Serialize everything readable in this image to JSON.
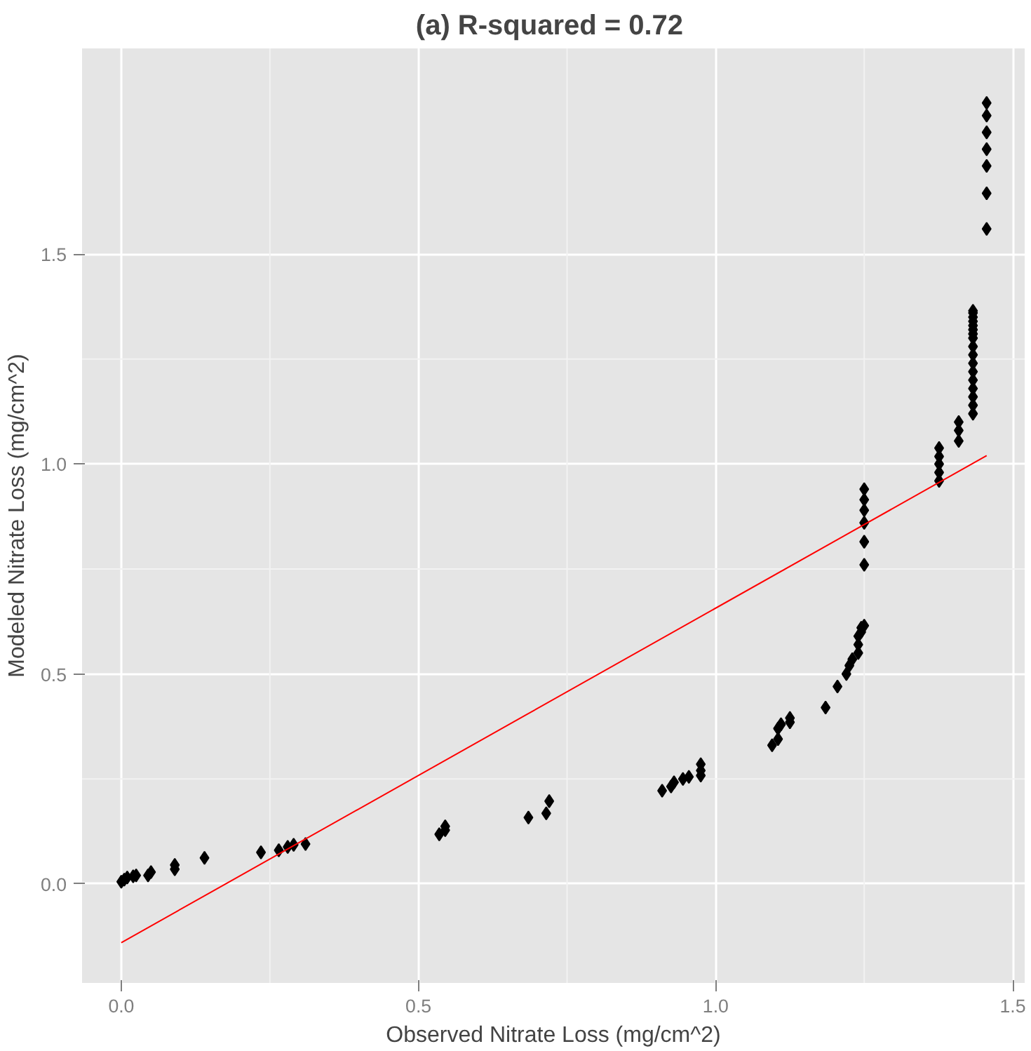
{
  "chart_data": {
    "type": "scatter",
    "title": "(a) R-squared =  0.72",
    "xlabel": "Observed Nitrate Loss (mg/cm^2)",
    "ylabel": "Modeled Nitrate Loss (mg/cm^2)",
    "xlim": [
      -0.066,
      1.52
    ],
    "ylim": [
      -0.236,
      1.99
    ],
    "xticks": [
      {
        "value": 0,
        "label": "0.0"
      },
      0.5,
      {
        "value": 1,
        "label": "1.0"
      },
      1.5
    ],
    "yticks": [
      {
        "value": 0,
        "label": "0.0"
      },
      0.5,
      {
        "value": 1,
        "label": "1.0"
      },
      1.5
    ],
    "grid": true,
    "series": [
      {
        "color": "#000000",
        "marker": "diamond",
        "x": [
          0.0,
          0.005,
          0.01,
          0.02,
          0.025,
          0.045,
          0.05,
          0.09,
          0.09,
          0.14,
          0.235,
          0.265,
          0.28,
          0.29,
          0.31,
          0.535,
          0.545,
          0.545,
          0.685,
          0.715,
          0.72,
          0.91,
          0.925,
          0.93,
          0.945,
          0.955,
          0.975,
          0.975,
          0.975,
          1.095,
          1.105,
          1.105,
          1.11,
          1.125,
          1.125,
          1.185,
          1.205,
          1.22,
          1.225,
          1.23,
          1.24,
          1.24,
          1.24,
          1.245,
          1.245,
          1.25,
          1.25,
          1.25,
          1.25,
          1.25,
          1.25,
          1.25,
          1.376,
          1.376,
          1.376,
          1.376,
          1.376,
          1.409,
          1.409,
          1.409,
          1.433,
          1.433,
          1.433,
          1.433,
          1.433,
          1.433,
          1.433,
          1.433,
          1.433,
          1.433,
          1.433,
          1.433,
          1.433,
          1.433,
          1.433,
          1.433,
          1.433,
          1.456,
          1.456,
          1.456,
          1.456,
          1.456,
          1.456,
          1.456
        ],
        "values": [
          0.005,
          0.01,
          0.015,
          0.018,
          0.02,
          0.02,
          0.028,
          0.035,
          0.045,
          0.062,
          0.075,
          0.08,
          0.088,
          0.093,
          0.095,
          0.118,
          0.128,
          0.137,
          0.158,
          0.168,
          0.197,
          0.222,
          0.232,
          0.242,
          0.25,
          0.255,
          0.258,
          0.27,
          0.285,
          0.33,
          0.345,
          0.37,
          0.38,
          0.385,
          0.395,
          0.42,
          0.47,
          0.5,
          0.52,
          0.535,
          0.55,
          0.57,
          0.59,
          0.6,
          0.61,
          0.615,
          0.76,
          0.815,
          0.86,
          0.89,
          0.915,
          0.94,
          0.96,
          0.98,
          1.0,
          1.018,
          1.038,
          1.055,
          1.08,
          1.1,
          1.12,
          1.14,
          1.16,
          1.18,
          1.2,
          1.22,
          1.24,
          1.26,
          1.28,
          1.3,
          1.31,
          1.32,
          1.33,
          1.34,
          1.35,
          1.36,
          1.365,
          1.56,
          1.645,
          1.71,
          1.75,
          1.79,
          1.83,
          1.86
        ]
      },
      {
        "type": "line",
        "marker": "none",
        "color": "#ff0000",
        "x": [
          0.0,
          1.456
        ],
        "values": [
          -0.14,
          1.02
        ]
      }
    ]
  }
}
